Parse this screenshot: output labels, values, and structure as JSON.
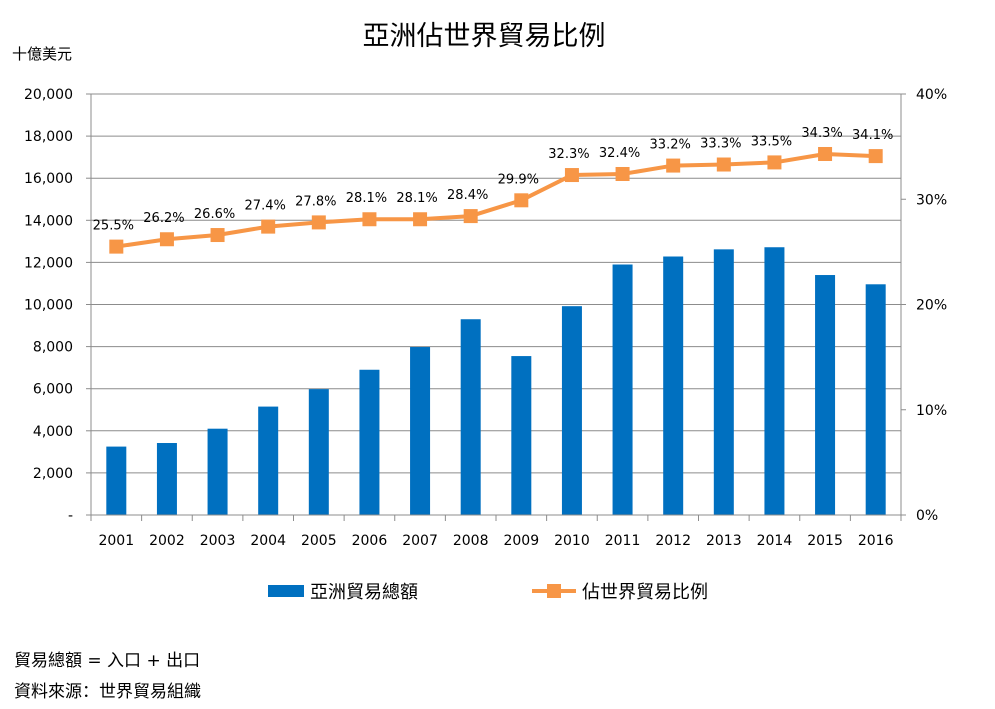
{
  "chart_data": {
    "type": "bar+line",
    "title": "亞洲佔世界貿易比例",
    "y_unit_label": "十億美元",
    "categories": [
      "2001",
      "2002",
      "2003",
      "2004",
      "2005",
      "2006",
      "2007",
      "2008",
      "2009",
      "2010",
      "2011",
      "2012",
      "2013",
      "2014",
      "2015",
      "2016"
    ],
    "series": [
      {
        "name": "亞洲貿易總額",
        "type": "bar",
        "axis": "left",
        "color": "#0070C0",
        "values": [
          3250,
          3420,
          4100,
          5150,
          5980,
          6900,
          7980,
          9300,
          7550,
          9920,
          11900,
          12280,
          12620,
          12720,
          11400,
          10960
        ]
      },
      {
        "name": "佔世界貿易比例",
        "type": "line",
        "axis": "right",
        "color": "#F79646",
        "values": [
          25.5,
          26.2,
          26.6,
          27.4,
          27.8,
          28.1,
          28.1,
          28.4,
          29.9,
          32.3,
          32.4,
          33.2,
          33.3,
          33.5,
          34.3,
          34.1
        ],
        "labels": [
          "25.5%",
          "26.2%",
          "26.6%",
          "27.4%",
          "27.8%",
          "28.1%",
          "28.1%",
          "28.4%",
          "29.9%",
          "32.3%",
          "32.4%",
          "33.2%",
          "33.3%",
          "33.5%",
          "34.3%",
          "34.1%"
        ]
      }
    ],
    "y_left": {
      "min": 0,
      "max": 20000,
      "step": 2000,
      "tick_labels": [
        "-",
        "2,000",
        "4,000",
        "6,000",
        "8,000",
        "10,000",
        "12,000",
        "14,000",
        "16,000",
        "18,000",
        "20,000"
      ]
    },
    "y_right": {
      "min": 0,
      "max": 40,
      "step": 10,
      "tick_labels": [
        "0%",
        "10%",
        "20%",
        "30%",
        "40%"
      ]
    },
    "grid": true,
    "legend_position": "bottom"
  },
  "notes": [
    "貿易總額 = 入口 + 出口",
    "資料來源：世界貿易組織"
  ]
}
